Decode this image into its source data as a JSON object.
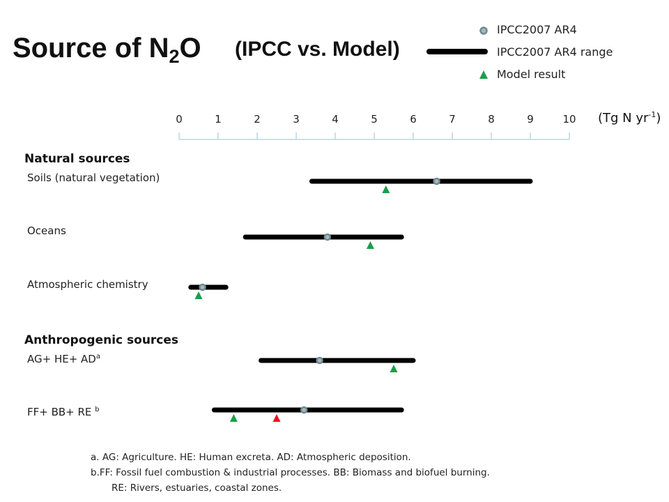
{
  "title": {
    "main": "Source of N",
    "sub": "2",
    "suffix": "O",
    "comparison": "(IPCC vs. Model)"
  },
  "legend": {
    "point_label": "IPCC2007 AR4",
    "range_label": "IPCC2007 AR4 range",
    "model_label": "Model result"
  },
  "unit": {
    "base": "(Tg N yr",
    "exp": "-1",
    "close": ")"
  },
  "sections": {
    "natural": "Natural sources",
    "anthropogenic": "Anthropogenic sources"
  },
  "rows": [
    {
      "label": "Soils (natural vegetation)",
      "sup": ""
    },
    {
      "label": "Oceans",
      "sup": ""
    },
    {
      "label": "Atmospheric  chemistry",
      "sup": ""
    },
    {
      "label": "AG+ HE+ AD",
      "sup": "a"
    },
    {
      "label": "FF+ BB+ RE ",
      "sup": "b"
    }
  ],
  "notes": [
    "a.    AG: Agriculture.  HE: Human excreta. AD: Atmospheric deposition.",
    "b.FF: Fossil fuel combustion & industrial processes.  BB: Biomass and biofuel burning.",
    "RE: Rivers, estuaries, coastal zones."
  ],
  "colors": {
    "range": "#000000",
    "point_fill": "#a9b8bd",
    "point_stroke": "#6f8a90",
    "model": "#1a9e4a",
    "model_alt": "#e8141c",
    "axis": "#b9d6e3"
  },
  "chart_data": {
    "type": "range",
    "xlim": [
      0,
      10
    ],
    "ticks": [
      0,
      1,
      2,
      3,
      4,
      5,
      6,
      7,
      8,
      9,
      10
    ],
    "series": [
      {
        "category": "Soils (natural vegetation)",
        "range": [
          3.4,
          9.0
        ],
        "ipcc": 6.6,
        "model": [
          5.3
        ]
      },
      {
        "category": "Oceans",
        "range": [
          1.7,
          5.7
        ],
        "ipcc": 3.8,
        "model": [
          4.9
        ]
      },
      {
        "category": "Atmospheric chemistry",
        "range": [
          0.3,
          1.2
        ],
        "ipcc": 0.6,
        "model": [
          0.5
        ]
      },
      {
        "category": "AG+ HE+ AD",
        "range": [
          2.1,
          6.0
        ],
        "ipcc": 3.6,
        "model": [
          5.5
        ]
      },
      {
        "category": "FF+ BB+ RE",
        "range": [
          0.9,
          5.7
        ],
        "ipcc": 3.2,
        "model": [
          1.4,
          2.5
        ],
        "model_colors": [
          "model",
          "model_alt"
        ]
      }
    ]
  }
}
